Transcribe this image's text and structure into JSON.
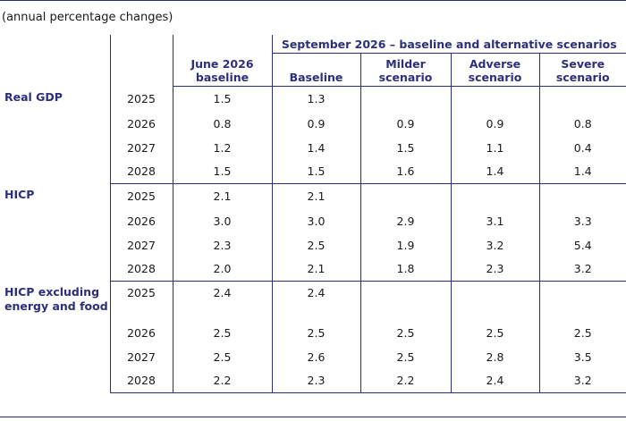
{
  "subtitle": "(annual percentage changes)",
  "header": {
    "group_label": "September 2026 – baseline and alternative scenarios",
    "columns": [
      {
        "line1": "June 2026",
        "line2": "baseline"
      },
      {
        "line1": "Baseline",
        "line2": ""
      },
      {
        "line1": "Milder",
        "line2": "scenario"
      },
      {
        "line1": "Adverse",
        "line2": "scenario"
      },
      {
        "line1": "Severe",
        "line2": "scenario"
      }
    ]
  },
  "groups": [
    {
      "label_line1": "Real GDP",
      "label_line2": "",
      "rows": [
        {
          "year": "2025",
          "values": [
            "1.5",
            "1.3",
            "",
            "",
            ""
          ]
        },
        {
          "year": "2026",
          "values": [
            "0.8",
            "0.9",
            "0.9",
            "0.9",
            "0.8"
          ]
        },
        {
          "year": "2027",
          "values": [
            "1.2",
            "1.4",
            "1.5",
            "1.1",
            "0.4"
          ]
        },
        {
          "year": "2028",
          "values": [
            "1.5",
            "1.5",
            "1.6",
            "1.4",
            "1.4"
          ]
        }
      ]
    },
    {
      "label_line1": "HICP",
      "label_line2": "",
      "rows": [
        {
          "year": "2025",
          "values": [
            "2.1",
            "2.1",
            "",
            "",
            ""
          ]
        },
        {
          "year": "2026",
          "values": [
            "3.0",
            "3.0",
            "2.9",
            "3.1",
            "3.3"
          ]
        },
        {
          "year": "2027",
          "values": [
            "2.3",
            "2.5",
            "1.9",
            "3.2",
            "5.4"
          ]
        },
        {
          "year": "2028",
          "values": [
            "2.0",
            "2.1",
            "1.8",
            "2.3",
            "3.2"
          ]
        }
      ]
    },
    {
      "label_line1": "HICP excluding",
      "label_line2": "energy and food",
      "rows": [
        {
          "year": "2025",
          "values": [
            "2.4",
            "2.4",
            "",
            "",
            ""
          ]
        },
        {
          "year": "2026",
          "values": [
            "2.5",
            "2.5",
            "2.5",
            "2.5",
            "2.5"
          ]
        },
        {
          "year": "2027",
          "values": [
            "2.5",
            "2.6",
            "2.5",
            "2.8",
            "3.5"
          ]
        },
        {
          "year": "2028",
          "values": [
            "2.2",
            "2.3",
            "2.2",
            "2.4",
            "3.2"
          ]
        }
      ]
    }
  ]
}
